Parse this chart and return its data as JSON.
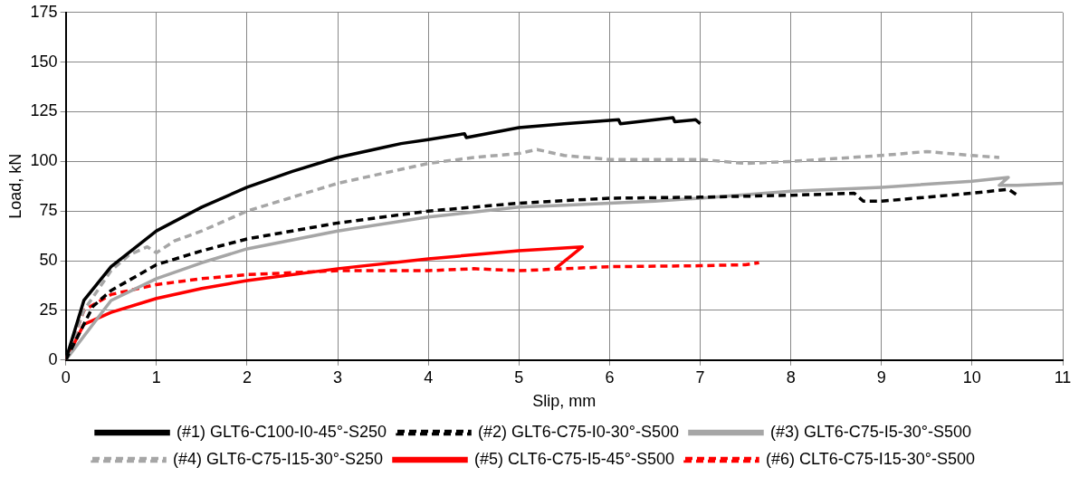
{
  "chart_data": {
    "type": "line",
    "xlabel": "Slip, mm",
    "ylabel": "Load, kN",
    "xlim": [
      0,
      11
    ],
    "xticks": [
      0,
      1,
      2,
      3,
      4,
      5,
      6,
      7,
      8,
      9,
      10,
      11
    ],
    "ylim": [
      0,
      175
    ],
    "yticks": [
      0,
      25,
      50,
      75,
      100,
      125,
      150,
      175
    ],
    "grid": true,
    "legend": "bottom",
    "marker": "none",
    "series": [
      {
        "name": "(#1) GLT6-C100-I0-45°-S250",
        "color": "#000000",
        "line_style": "solid",
        "x": [
          0,
          0.2,
          0.5,
          1,
          1.5,
          2,
          2.5,
          3,
          3.5,
          3.7,
          4,
          4.4,
          4.42,
          5,
          5.5,
          6.1,
          6.12,
          6.7,
          6.72,
          6.95,
          7
        ],
        "values": [
          0,
          30,
          47,
          65,
          77,
          87,
          95,
          102,
          107,
          109,
          111,
          114,
          112,
          117,
          119,
          121,
          119,
          122,
          120,
          121,
          119
        ]
      },
      {
        "name": "(#2) GLT6-C75-I0-30°-S500",
        "color": "#000000",
        "line_style": "dashed",
        "x": [
          0,
          0.3,
          0.5,
          1,
          1.5,
          2,
          3,
          4,
          5,
          6,
          7,
          8,
          8.7,
          8.8,
          9,
          10,
          10.4,
          10.5
        ],
        "values": [
          0,
          27,
          35,
          48,
          55,
          61,
          69,
          75,
          79,
          81.5,
          82,
          83,
          84,
          80,
          80,
          84,
          86,
          83
        ]
      },
      {
        "name": "(#3) GLT6-C75-I5-30°-S500",
        "color": "#a6a6a6",
        "line_style": "solid",
        "x": [
          0,
          0.5,
          1,
          1.5,
          2,
          3,
          4,
          5,
          5.5,
          6,
          6.5,
          7,
          8,
          9,
          10,
          10.4,
          10.3,
          10.5,
          11
        ],
        "values": [
          0,
          30,
          41,
          49,
          56,
          65,
          72,
          77,
          78,
          79,
          80,
          81.5,
          85,
          87,
          90,
          92,
          88,
          88,
          89
        ]
      },
      {
        "name": "(#4) GLT6-C75-I15-30°-S250",
        "color": "#a6a6a6",
        "line_style": "dashed",
        "x": [
          0,
          0.2,
          0.5,
          0.7,
          0.9,
          1,
          1.2,
          1.5,
          2,
          2.5,
          3,
          3.5,
          4,
          4.5,
          5,
          5.2,
          5.5,
          6,
          7,
          7.5,
          8,
          9,
          9.5,
          10,
          10.3
        ],
        "values": [
          0,
          25,
          45,
          53,
          57,
          54,
          60,
          65,
          75,
          82,
          89,
          94,
          99,
          102,
          104,
          106,
          103,
          101,
          101,
          99,
          100,
          103,
          105,
          103,
          102
        ]
      },
      {
        "name": "(#5) CLT6-C75-I5-45°-S500",
        "color": "#ff0000",
        "line_style": "solid",
        "x": [
          0,
          0.2,
          0.5,
          1,
          1.5,
          2,
          3,
          4,
          5,
          5.7,
          5.4
        ],
        "values": [
          0,
          18,
          24,
          31,
          36,
          40,
          46,
          51,
          55,
          57,
          46
        ]
      },
      {
        "name": "(#6) CLT6-C75-I15-30°-S500",
        "color": "#ff0000",
        "line_style": "dashed",
        "x": [
          0,
          0.2,
          0.5,
          1,
          1.5,
          2,
          2.5,
          3,
          4,
          4.5,
          5,
          6,
          7,
          7.5,
          7.65
        ],
        "values": [
          0,
          25,
          33,
          38,
          41,
          43,
          44,
          45,
          45,
          46,
          45,
          47,
          47.5,
          48,
          49
        ]
      }
    ]
  }
}
